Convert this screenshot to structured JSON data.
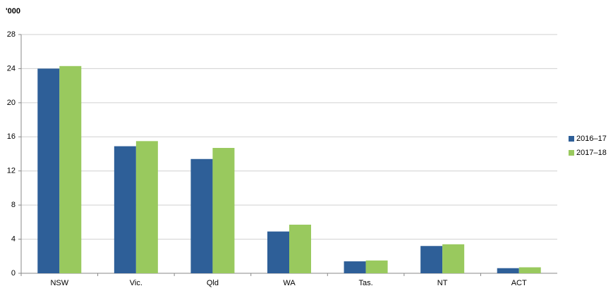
{
  "chart_data": {
    "type": "bar",
    "y_label": "'000",
    "categories": [
      "NSW",
      "Vic.",
      "Qld",
      "WA",
      "Tas.",
      "NT",
      "ACT"
    ],
    "series": [
      {
        "name": "2016–17",
        "color": "#2e5f98",
        "values": [
          24.0,
          14.9,
          13.4,
          4.9,
          1.4,
          3.2,
          0.6
        ]
      },
      {
        "name": "2017–18",
        "color": "#99c95e",
        "values": [
          24.3,
          15.5,
          14.7,
          5.7,
          1.5,
          3.4,
          0.7
        ]
      }
    ],
    "ylim": [
      0,
      28
    ],
    "yticks": [
      0,
      4,
      8,
      12,
      16,
      20,
      24,
      28
    ],
    "grid": true,
    "legend": "right"
  }
}
